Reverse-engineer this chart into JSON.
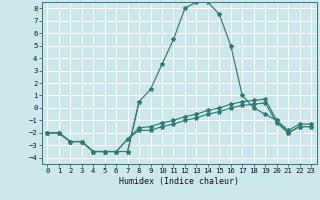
{
  "xlabel": "Humidex (Indice chaleur)",
  "xlim": [
    -0.5,
    23.5
  ],
  "ylim": [
    -4.5,
    8.5
  ],
  "xticks": [
    0,
    1,
    2,
    3,
    4,
    5,
    6,
    7,
    8,
    9,
    10,
    11,
    12,
    13,
    14,
    15,
    16,
    17,
    18,
    19,
    20,
    21,
    22,
    23
  ],
  "yticks": [
    -4,
    -3,
    -2,
    -1,
    0,
    1,
    2,
    3,
    4,
    5,
    6,
    7,
    8
  ],
  "bg_color": "#cce8ec",
  "grid_color": "#ffffff",
  "line_color": "#2e7d72",
  "lines": [
    {
      "x": [
        0,
        1,
        2,
        3,
        4,
        5,
        6,
        7,
        8,
        9,
        10,
        11,
        12,
        13,
        14,
        15,
        16,
        17,
        18,
        19,
        20,
        21,
        22,
        23
      ],
      "y": [
        -2.0,
        -2.0,
        -2.7,
        -2.7,
        -3.5,
        -3.5,
        -3.5,
        -3.5,
        0.5,
        1.5,
        3.5,
        5.5,
        8.0,
        8.5,
        8.5,
        7.5,
        5.0,
        1.0,
        0.0,
        -0.5,
        -1.0,
        -2.0,
        -1.5,
        -1.5
      ]
    },
    {
      "x": [
        0,
        1,
        2,
        3,
        4,
        5,
        6,
        7,
        8,
        9,
        10,
        11,
        12,
        13,
        14,
        15,
        16,
        17,
        18,
        19,
        20,
        21,
        22,
        23
      ],
      "y": [
        -2.0,
        -2.0,
        -2.7,
        -2.7,
        -3.5,
        -3.5,
        -3.5,
        -2.5,
        -1.8,
        -1.8,
        -1.5,
        -1.3,
        -1.0,
        -0.8,
        -0.5,
        -0.3,
        0.0,
        0.2,
        0.3,
        0.4,
        -1.2,
        -2.0,
        -1.5,
        -1.5
      ]
    },
    {
      "x": [
        0,
        1,
        2,
        3,
        4,
        5,
        6,
        7,
        8,
        9,
        10,
        11,
        12,
        13,
        14,
        15,
        16,
        17,
        18,
        19,
        20,
        21,
        22,
        23
      ],
      "y": [
        -2.0,
        -2.0,
        -2.7,
        -2.7,
        -3.5,
        -3.5,
        -3.5,
        -2.5,
        -1.6,
        -1.5,
        -1.2,
        -1.0,
        -0.7,
        -0.5,
        -0.2,
        0.0,
        0.3,
        0.5,
        0.6,
        0.7,
        -1.0,
        -1.8,
        -1.3,
        -1.3
      ]
    },
    {
      "x": [
        7,
        8
      ],
      "y": [
        -3.5,
        0.5
      ]
    }
  ]
}
